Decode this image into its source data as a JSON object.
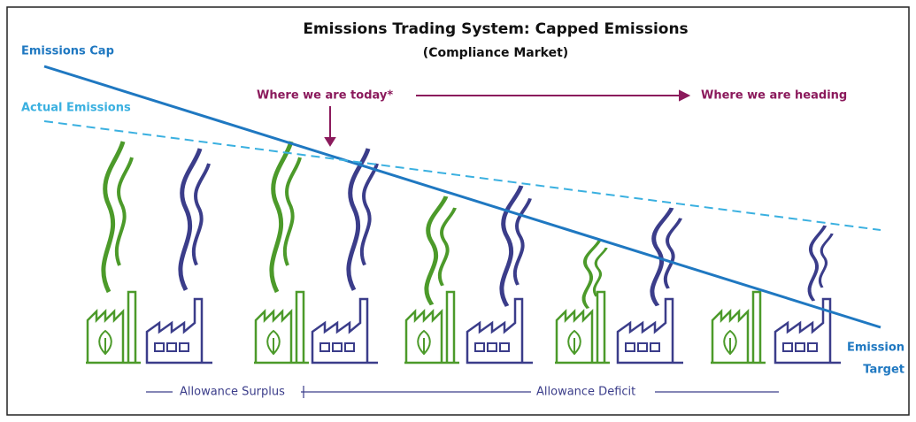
{
  "header": {
    "title": "Emissions Trading System: Capped Emissions",
    "subtitle": "(Compliance Market)"
  },
  "lines": {
    "cap": "Emissions Cap",
    "actual": "Actual Emissions",
    "target": [
      "Emission",
      "Target"
    ]
  },
  "timeline": {
    "today": "Where we are today*",
    "heading": "Where we are heading"
  },
  "allowance": {
    "surplus": "Allowance Surplus",
    "deficit": "Allowance Deficit"
  }
}
